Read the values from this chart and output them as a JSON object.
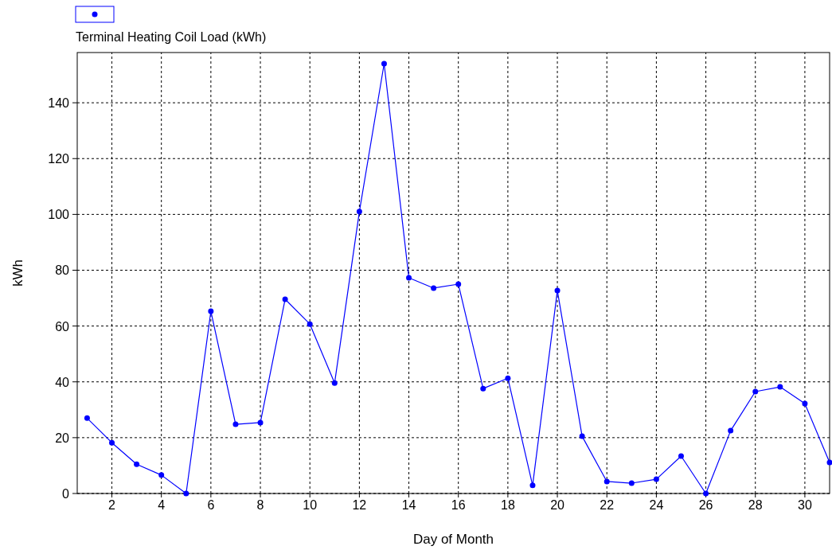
{
  "chart_data": {
    "type": "line",
    "xlabel": "Day of Month",
    "ylabel": "kWh",
    "x": [
      1,
      2,
      3,
      4,
      5,
      6,
      7,
      8,
      9,
      10,
      11,
      12,
      13,
      14,
      15,
      16,
      17,
      18,
      19,
      20,
      21,
      22,
      23,
      24,
      25,
      26,
      27,
      28,
      29,
      30,
      31
    ],
    "series": [
      {
        "name": "Terminal Heating Coil Load (kWh)",
        "color": "#0000ff",
        "values": [
          27,
          18.2,
          10.5,
          6.6,
          0,
          65.3,
          24.8,
          25.4,
          69.6,
          60.7,
          39.6,
          101,
          154,
          77.3,
          73.6,
          75,
          37.6,
          41.3,
          2.9,
          72.7,
          20.5,
          4.3,
          3.7,
          5.1,
          13.4,
          0,
          22.5,
          36.5,
          38.2,
          32.2,
          11.1
        ]
      }
    ],
    "xlim": [
      0.6,
      31
    ],
    "xticks": [
      2,
      4,
      6,
      8,
      10,
      12,
      14,
      16,
      18,
      20,
      22,
      24,
      26,
      28,
      30
    ],
    "ylim": [
      0,
      158
    ],
    "yticks": [
      0,
      20,
      40,
      60,
      80,
      100,
      120,
      140
    ],
    "grid": true,
    "legend": "top left",
    "marker": "circle",
    "line_style": "solid"
  }
}
